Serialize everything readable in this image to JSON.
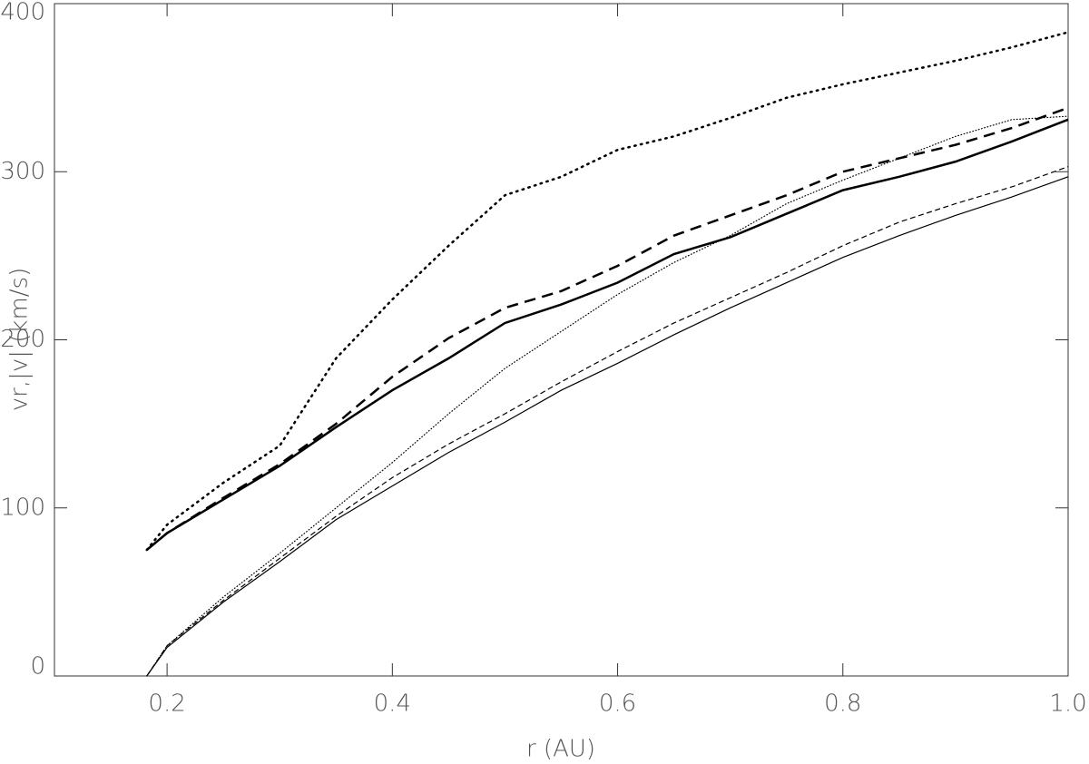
{
  "chart_data": {
    "type": "line",
    "x_label": "r (AU)",
    "y_label": "vr,|v| (km/s)",
    "xlim": [
      0.1,
      1.0
    ],
    "ylim": [
      0,
      400
    ],
    "xticks": [
      0.2,
      0.4,
      0.6,
      0.8,
      {
        "value": 1.0,
        "label": "1.0"
      }
    ],
    "yticks": [
      0,
      100,
      200,
      300,
      400
    ],
    "x": [
      0.182,
      0.2,
      0.25,
      0.3,
      0.35,
      0.4,
      0.45,
      0.5,
      0.55,
      0.6,
      0.65,
      0.7,
      0.75,
      0.8,
      0.85,
      0.9,
      0.95,
      1.0
    ],
    "series": [
      {
        "color": "#000",
        "width": 2.5,
        "dash": "dotted",
        "values": [
          75,
          90,
          115,
          137,
          189,
          224,
          256,
          286,
          297,
          313,
          321,
          332,
          344,
          352,
          359,
          366,
          374,
          383
        ]
      },
      {
        "color": "#000",
        "width": 2.5,
        "dash": "dashed",
        "values": [
          75,
          85,
          106,
          126,
          150,
          178,
          201,
          219,
          229,
          244,
          262,
          274,
          286,
          300,
          308,
          316,
          326,
          338
        ]
      },
      {
        "color": "#000",
        "width": 2.5,
        "dash": "solid",
        "values": [
          75,
          85,
          105,
          125,
          148,
          170,
          189,
          210,
          221,
          234,
          251,
          261,
          275,
          289,
          297,
          306,
          318,
          331
        ]
      },
      {
        "color": "#000",
        "width": 1.2,
        "dash": "dotted",
        "values": [
          0,
          18,
          47,
          73,
          100,
          127,
          156,
          183,
          205,
          227,
          246,
          262,
          281,
          295,
          308,
          321,
          331,
          333
        ]
      },
      {
        "color": "#000",
        "width": 1.2,
        "dash": "dashed",
        "values": [
          0,
          18,
          45,
          70,
          95,
          118,
          138,
          156,
          175,
          193,
          210,
          225,
          240,
          256,
          270,
          281,
          291,
          303
        ]
      },
      {
        "color": "#000",
        "width": 1.2,
        "dash": "solid",
        "values": [
          0,
          17,
          44,
          68,
          93,
          113,
          133,
          151,
          170,
          186,
          203,
          219,
          234,
          249,
          262,
          274,
          285,
          297
        ]
      }
    ]
  }
}
